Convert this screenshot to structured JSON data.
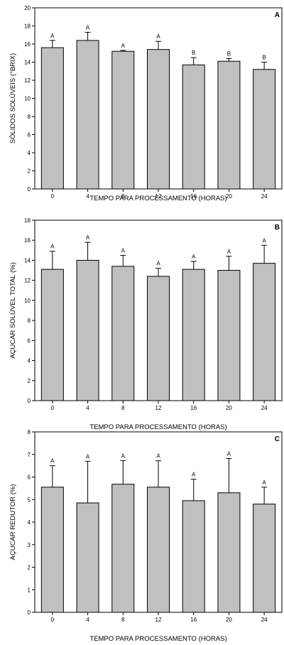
{
  "colors": {
    "bar_fill": "#c0c0c0",
    "stroke": "#000000",
    "background": "#ffffff"
  },
  "chart_data": [
    {
      "type": "bar",
      "panel_letter": "A",
      "categories": [
        "0",
        "4",
        "8",
        "12",
        "16",
        "20",
        "24"
      ],
      "values": [
        15.6,
        16.4,
        15.2,
        15.4,
        13.7,
        14.1,
        13.2
      ],
      "error": [
        0.8,
        0.9,
        0.1,
        0.9,
        0.8,
        0.3,
        0.8
      ],
      "significance": [
        "A",
        "A",
        "A",
        "A",
        "B",
        "B",
        "B"
      ],
      "xlabel": "TEMPO PARA PROCESSAMENTO (HORAS)",
      "ylabel": "SÓLIDOS SOLÚVEIS (°BRIX)",
      "ylim": [
        0,
        20
      ],
      "yticks": [
        "0",
        "2",
        "4",
        "6",
        "8",
        "10",
        "12",
        "14",
        "16",
        "18",
        "20"
      ],
      "grid": false
    },
    {
      "type": "bar",
      "panel_letter": "B",
      "categories": [
        "0",
        "4",
        "8",
        "12",
        "16",
        "20",
        "24"
      ],
      "values": [
        13.1,
        14.0,
        13.4,
        12.4,
        13.1,
        13.0,
        13.7
      ],
      "error": [
        1.8,
        1.8,
        1.1,
        0.8,
        0.8,
        1.4,
        1.8
      ],
      "significance": [
        "A",
        "A",
        "A",
        "A",
        "A",
        "A",
        "A"
      ],
      "xlabel": "TEMPO PARA PROCESSAMENTO (HORAS)",
      "ylabel": "AÇUCAR SOLÚVEL TOTAL (%)",
      "ylim": [
        0,
        18
      ],
      "yticks": [
        "0",
        "2",
        "4",
        "6",
        "8",
        "10",
        "12",
        "14",
        "16",
        "18"
      ],
      "grid": false
    },
    {
      "type": "bar",
      "panel_letter": "C",
      "categories": [
        "0",
        "4",
        "8",
        "12",
        "16",
        "20",
        "24"
      ],
      "values": [
        5.55,
        4.85,
        5.68,
        5.55,
        4.95,
        5.3,
        4.8
      ],
      "error": [
        0.95,
        1.85,
        1.05,
        1.17,
        0.95,
        1.52,
        0.75
      ],
      "significance": [
        "A",
        "A",
        "A",
        "A",
        "A",
        "A",
        "A"
      ],
      "xlabel": "TEMPO PARA PROCESSAMENTO (HORAS)",
      "ylabel": "AÇUCAR REDUTOR (%)",
      "ylim": [
        0,
        8
      ],
      "yticks": [
        "0",
        "1",
        "2",
        "3",
        "4",
        "5",
        "6",
        "7",
        "8"
      ],
      "grid": false
    }
  ]
}
